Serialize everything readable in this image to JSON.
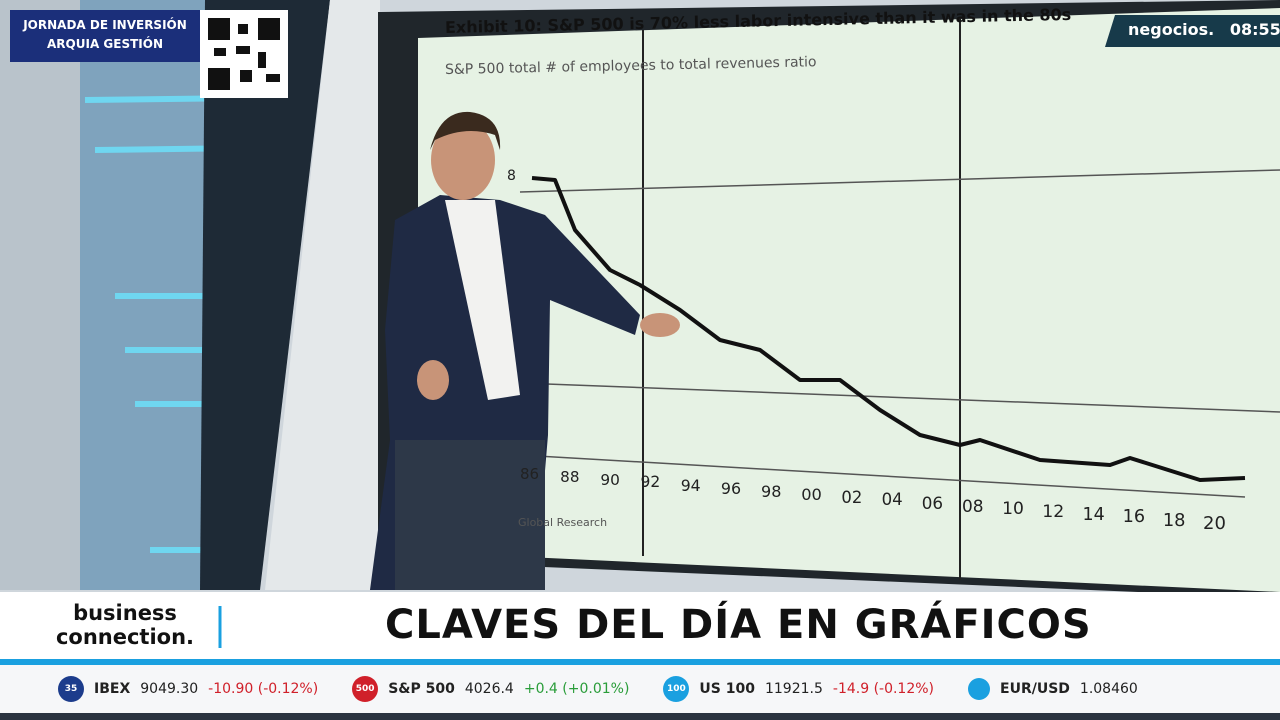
{
  "corner_badge": {
    "line1": "JORNADA DE INVERSIÓN",
    "line2": "ARQUIA GESTIÓN"
  },
  "channel": {
    "name": "negocios.",
    "time": "08:55"
  },
  "screen_chart": {
    "title": "Exhibit 10: S&P 500 is 70% less labor intensive than it was in the 80s",
    "subtitle": "S&P 500 total # of employees to total revenues ratio",
    "y_label": "8",
    "x_labels": [
      "86",
      "88",
      "90",
      "92",
      "94",
      "96",
      "98",
      "00",
      "02",
      "04",
      "06",
      "08",
      "10",
      "12",
      "14",
      "16",
      "18",
      "20"
    ],
    "source": "Global Research"
  },
  "lower_third": {
    "brand_line1": "business",
    "brand_line2": "connection.",
    "headline": "CLAVES DEL DÍA EN GRÁFICOS"
  },
  "ticker": [
    {
      "badge": "35",
      "name": "IBEX",
      "value": "9049.30",
      "change": "-10.90 (-0.12%)",
      "up": false
    },
    {
      "badge": "500",
      "name": "S&P 500",
      "value": "4026.4",
      "change": "+0.4 (+0.01%)",
      "up": true
    },
    {
      "badge": "100",
      "name": "US 100",
      "value": "11921.5",
      "change": "-14.9 (-0.12%)",
      "up": false
    },
    {
      "badge": "",
      "name": "EUR/USD",
      "value": "1.08460",
      "change": null,
      "up": null
    }
  ]
}
